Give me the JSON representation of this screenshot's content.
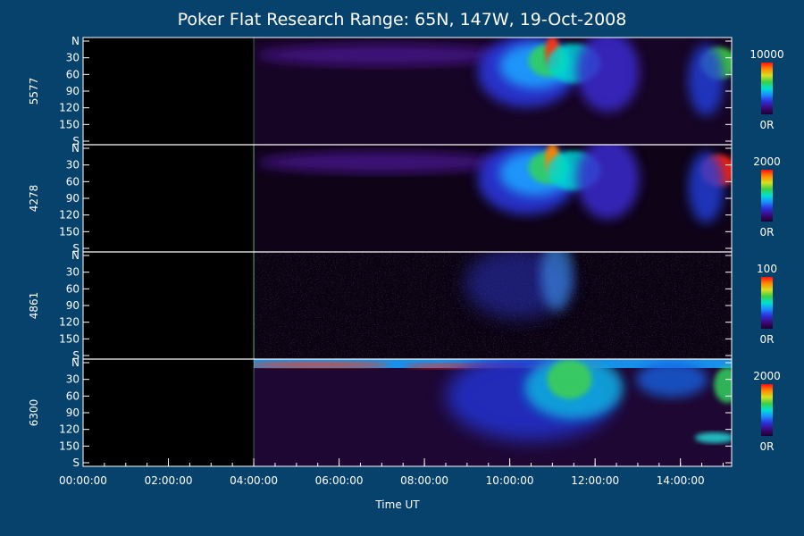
{
  "chart_data": {
    "type": "heatmap",
    "title": "Poker Flat Research Range: 65N, 147W, 19-Oct-2008",
    "xlabel": "Time UT",
    "x_ticks": [
      "00:00:00",
      "02:00:00",
      "04:00:00",
      "06:00:00",
      "08:00:00",
      "10:00:00",
      "12:00:00",
      "14:00:00"
    ],
    "x_tick_hours": [
      0,
      2,
      4,
      6,
      8,
      10,
      12,
      14
    ],
    "x_range_hours": [
      0,
      15.2
    ],
    "data_start_hour": 4.0,
    "y_ticks": [
      "N",
      "30",
      "60",
      "90",
      "120",
      "150",
      "S"
    ],
    "y_tick_values": [
      0,
      30,
      60,
      90,
      120,
      150,
      180
    ],
    "y_range": [
      0,
      180
    ],
    "panels": [
      {
        "name": "5577",
        "scale_max": "10000",
        "scale_min": "0R"
      },
      {
        "name": "4278",
        "scale_max": "2000",
        "scale_min": "0R"
      },
      {
        "name": "4861",
        "scale_max": "100",
        "scale_min": "0R"
      },
      {
        "name": "6300",
        "scale_max": "2000",
        "scale_min": "0R"
      }
    ],
    "colorbar_colors": [
      "#1a0030",
      "#3d0a7a",
      "#2b2fd8",
      "#1c8cff",
      "#00e0d0",
      "#3cd048",
      "#d8e020",
      "#ff8a00",
      "#ff1010"
    ],
    "background_color": "#07426d",
    "plot_background": "#000000"
  }
}
